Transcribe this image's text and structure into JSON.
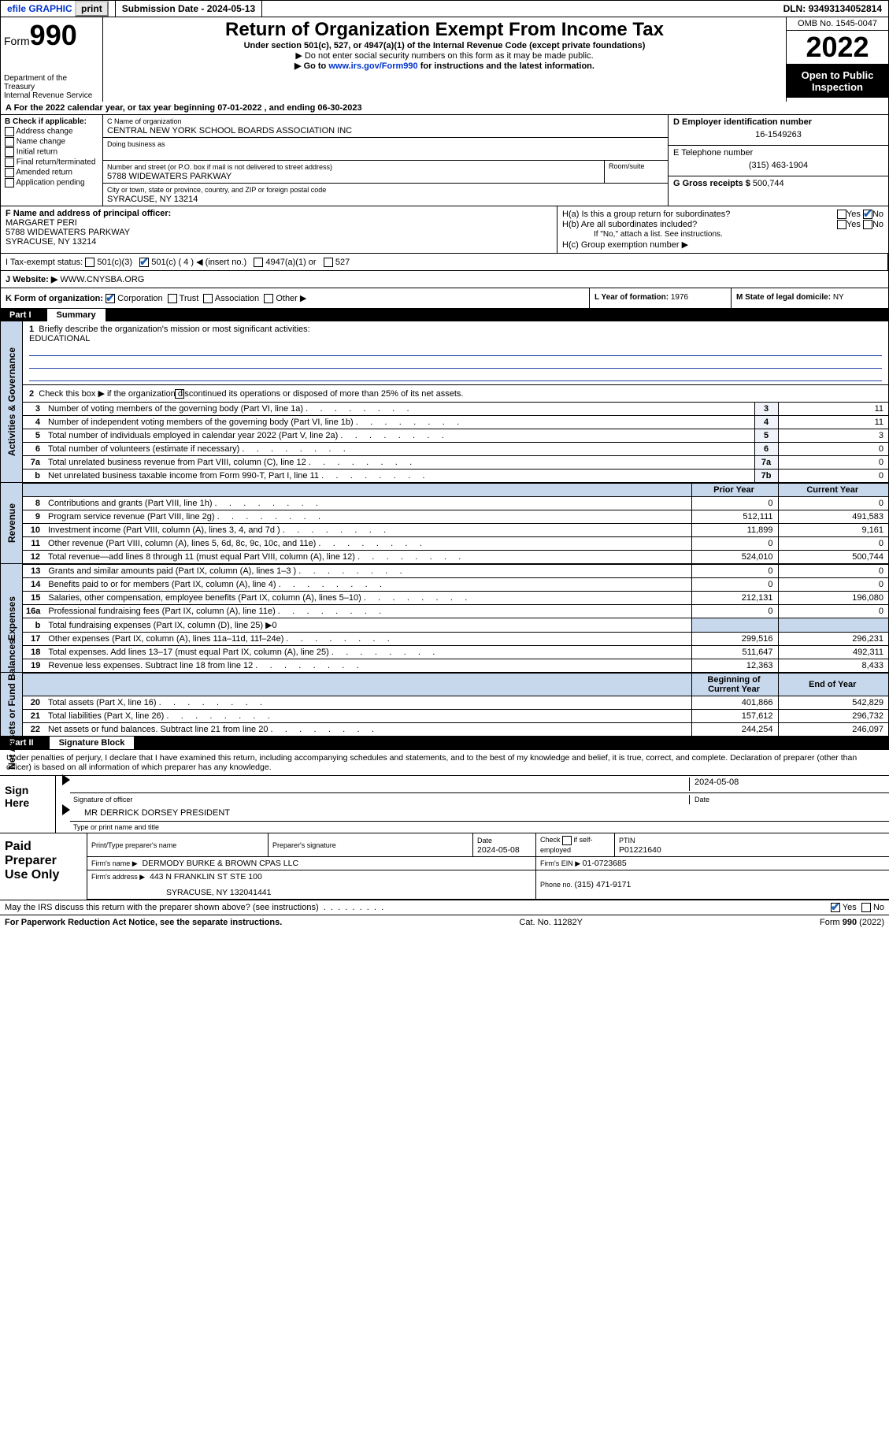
{
  "topbar": {
    "efile": "efile GRAPHIC",
    "print": "print",
    "sub_label": "Submission Date - ",
    "sub_date": "2024-05-13",
    "dln_label": "DLN: ",
    "dln": "93493134052814"
  },
  "header": {
    "form_prefix": "Form",
    "form_no": "990",
    "dept": "Department of the Treasury",
    "irs": "Internal Revenue Service",
    "title": "Return of Organization Exempt From Income Tax",
    "sub1": "Under section 501(c), 527, or 4947(a)(1) of the Internal Revenue Code (except private foundations)",
    "sub2": "▶ Do not enter social security numbers on this form as it may be made public.",
    "sub3_pre": "▶ Go to ",
    "sub3_link": "www.irs.gov/Form990",
    "sub3_post": " for instructions and the latest information.",
    "omb": "OMB No. 1545-0047",
    "year": "2022",
    "open": "Open to Public Inspection"
  },
  "rowA": "A For the 2022 calendar year, or tax year beginning 07-01-2022   , and ending 06-30-2023",
  "B": {
    "label": "B Check if applicable:",
    "opts": [
      "Address change",
      "Name change",
      "Initial return",
      "Final return/terminated",
      "Amended return",
      "Application pending"
    ]
  },
  "C": {
    "name_lbl": "C Name of organization",
    "name": "CENTRAL NEW YORK SCHOOL BOARDS ASSOCIATION INC",
    "dba_lbl": "Doing business as",
    "addr_lbl": "Number and street (or P.O. box if mail is not delivered to street address)",
    "room_lbl": "Room/suite",
    "addr": "5788 WIDEWATERS PARKWAY",
    "city_lbl": "City or town, state or province, country, and ZIP or foreign postal code",
    "city": "SYRACUSE, NY  13214"
  },
  "D": {
    "lbl": "D Employer identification number",
    "val": "16-1549263"
  },
  "E": {
    "lbl": "E Telephone number",
    "val": "(315) 463-1904"
  },
  "G": {
    "lbl": "G Gross receipts $ ",
    "val": "500,744"
  },
  "F": {
    "lbl": "F  Name and address of principal officer:",
    "name": "MARGARET PERI",
    "addr": "5788 WIDEWATERS PARKWAY",
    "city": "SYRACUSE, NY  13214"
  },
  "H": {
    "a_lbl": "H(a)  Is this a group return for subordinates?",
    "b_lbl": "H(b)  Are all subordinates included?",
    "b_note": "If \"No,\" attach a list. See instructions.",
    "c_lbl": "H(c)  Group exemption number ▶",
    "yes": "Yes",
    "no": "No"
  },
  "I": {
    "lbl": "I   Tax-exempt status:",
    "o1": "501(c)(3)",
    "o2": "501(c) ( 4 ) ◀ (insert no.)",
    "o3": "4947(a)(1) or",
    "o4": "527"
  },
  "J": {
    "lbl": "J   Website: ▶ ",
    "val": "WWW.CNYSBA.ORG"
  },
  "K": {
    "lbl": "K Form of organization:",
    "o1": "Corporation",
    "o2": "Trust",
    "o3": "Association",
    "o4": "Other ▶"
  },
  "L": {
    "lbl": "L Year of formation: ",
    "val": "1976"
  },
  "M": {
    "lbl": "M State of legal domicile: ",
    "val": "NY"
  },
  "part1": {
    "num": "Part I",
    "title": "Summary"
  },
  "side": {
    "ag": "Activities & Governance",
    "rev": "Revenue",
    "exp": "Expenses",
    "net": "Net Assets or Fund Balances"
  },
  "q1": {
    "lbl": "Briefly describe the organization's mission or most significant activities:",
    "val": "EDUCATIONAL"
  },
  "q2": "Check this box ▶      if the organization discontinued its operations or disposed of more than 25% of its net assets.",
  "rows_ag": [
    {
      "n": "3",
      "t": "Number of voting members of the governing body (Part VI, line 1a)",
      "k": "3",
      "v": "11"
    },
    {
      "n": "4",
      "t": "Number of independent voting members of the governing body (Part VI, line 1b)",
      "k": "4",
      "v": "11"
    },
    {
      "n": "5",
      "t": "Total number of individuals employed in calendar year 2022 (Part V, line 2a)",
      "k": "5",
      "v": "3"
    },
    {
      "n": "6",
      "t": "Total number of volunteers (estimate if necessary)",
      "k": "6",
      "v": "0"
    },
    {
      "n": "7a",
      "t": "Total unrelated business revenue from Part VIII, column (C), line 12",
      "k": "7a",
      "v": "0"
    },
    {
      "n": "b",
      "t": "Net unrelated business taxable income from Form 990-T, Part I, line 11",
      "k": "7b",
      "v": "0"
    }
  ],
  "hdr_py": "Prior Year",
  "hdr_cy": "Current Year",
  "rows_rev": [
    {
      "n": "8",
      "t": "Contributions and grants (Part VIII, line 1h)",
      "p": "0",
      "c": "0"
    },
    {
      "n": "9",
      "t": "Program service revenue (Part VIII, line 2g)",
      "p": "512,111",
      "c": "491,583"
    },
    {
      "n": "10",
      "t": "Investment income (Part VIII, column (A), lines 3, 4, and 7d )",
      "p": "11,899",
      "c": "9,161"
    },
    {
      "n": "11",
      "t": "Other revenue (Part VIII, column (A), lines 5, 6d, 8c, 9c, 10c, and 11e)",
      "p": "0",
      "c": "0"
    },
    {
      "n": "12",
      "t": "Total revenue—add lines 8 through 11 (must equal Part VIII, column (A), line 12)",
      "p": "524,010",
      "c": "500,744"
    }
  ],
  "rows_exp": [
    {
      "n": "13",
      "t": "Grants and similar amounts paid (Part IX, column (A), lines 1–3 )",
      "p": "0",
      "c": "0"
    },
    {
      "n": "14",
      "t": "Benefits paid to or for members (Part IX, column (A), line 4)",
      "p": "0",
      "c": "0"
    },
    {
      "n": "15",
      "t": "Salaries, other compensation, employee benefits (Part IX, column (A), lines 5–10)",
      "p": "212,131",
      "c": "196,080"
    },
    {
      "n": "16a",
      "t": "Professional fundraising fees (Part IX, column (A), line 11e)",
      "p": "0",
      "c": "0"
    },
    {
      "n": "b",
      "t": "Total fundraising expenses (Part IX, column (D), line 25) ▶0",
      "p": "",
      "c": ""
    },
    {
      "n": "17",
      "t": "Other expenses (Part IX, column (A), lines 11a–11d, 11f–24e)",
      "p": "299,516",
      "c": "296,231"
    },
    {
      "n": "18",
      "t": "Total expenses. Add lines 13–17 (must equal Part IX, column (A), line 25)",
      "p": "511,647",
      "c": "492,311"
    },
    {
      "n": "19",
      "t": "Revenue less expenses. Subtract line 18 from line 12",
      "p": "12,363",
      "c": "8,433"
    }
  ],
  "hdr_by": "Beginning of Current Year",
  "hdr_ey": "End of Year",
  "rows_net": [
    {
      "n": "20",
      "t": "Total assets (Part X, line 16)",
      "p": "401,866",
      "c": "542,829"
    },
    {
      "n": "21",
      "t": "Total liabilities (Part X, line 26)",
      "p": "157,612",
      "c": "296,732"
    },
    {
      "n": "22",
      "t": "Net assets or fund balances. Subtract line 21 from line 20",
      "p": "244,254",
      "c": "246,097"
    }
  ],
  "part2": {
    "num": "Part II",
    "title": "Signature Block"
  },
  "decl": "Under penalties of perjury, I declare that I have examined this return, including accompanying schedules and statements, and to the best of my knowledge and belief, it is true, correct, and complete. Declaration of preparer (other than officer) is based on all information of which preparer has any knowledge.",
  "sign": {
    "here": "Sign Here",
    "sig_lbl": "Signature of officer",
    "date_lbl": "Date",
    "date": "2024-05-08",
    "name": "MR DERRICK DORSEY PRESIDENT",
    "name_lbl": "Type or print name and title"
  },
  "prep": {
    "title": "Paid Preparer Use Only",
    "h1": "Print/Type preparer's name",
    "h2": "Preparer's signature",
    "h3": "Date",
    "h3v": "2024-05-08",
    "h4a": "Check",
    "h4b": "if self-employed",
    "h5": "PTIN",
    "h5v": "P01221640",
    "firm_lbl": "Firm's name     ▶",
    "firm": "DERMODY BURKE & BROWN CPAS LLC",
    "ein_lbl": "Firm's EIN ▶ ",
    "ein": "01-0723685",
    "addr_lbl": "Firm's address ▶",
    "addr1": "443 N FRANKLIN ST STE 100",
    "addr2": "SYRACUSE, NY  132041441",
    "ph_lbl": "Phone no. ",
    "ph": "(315) 471-9171"
  },
  "footer": {
    "discuss": "May the IRS discuss this return with the preparer shown above? (see instructions)",
    "yes": "Yes",
    "no": "No",
    "pra": "For Paperwork Reduction Act Notice, see the separate instructions.",
    "cat": "Cat. No. 11282Y",
    "form": "Form 990 (2022)"
  }
}
